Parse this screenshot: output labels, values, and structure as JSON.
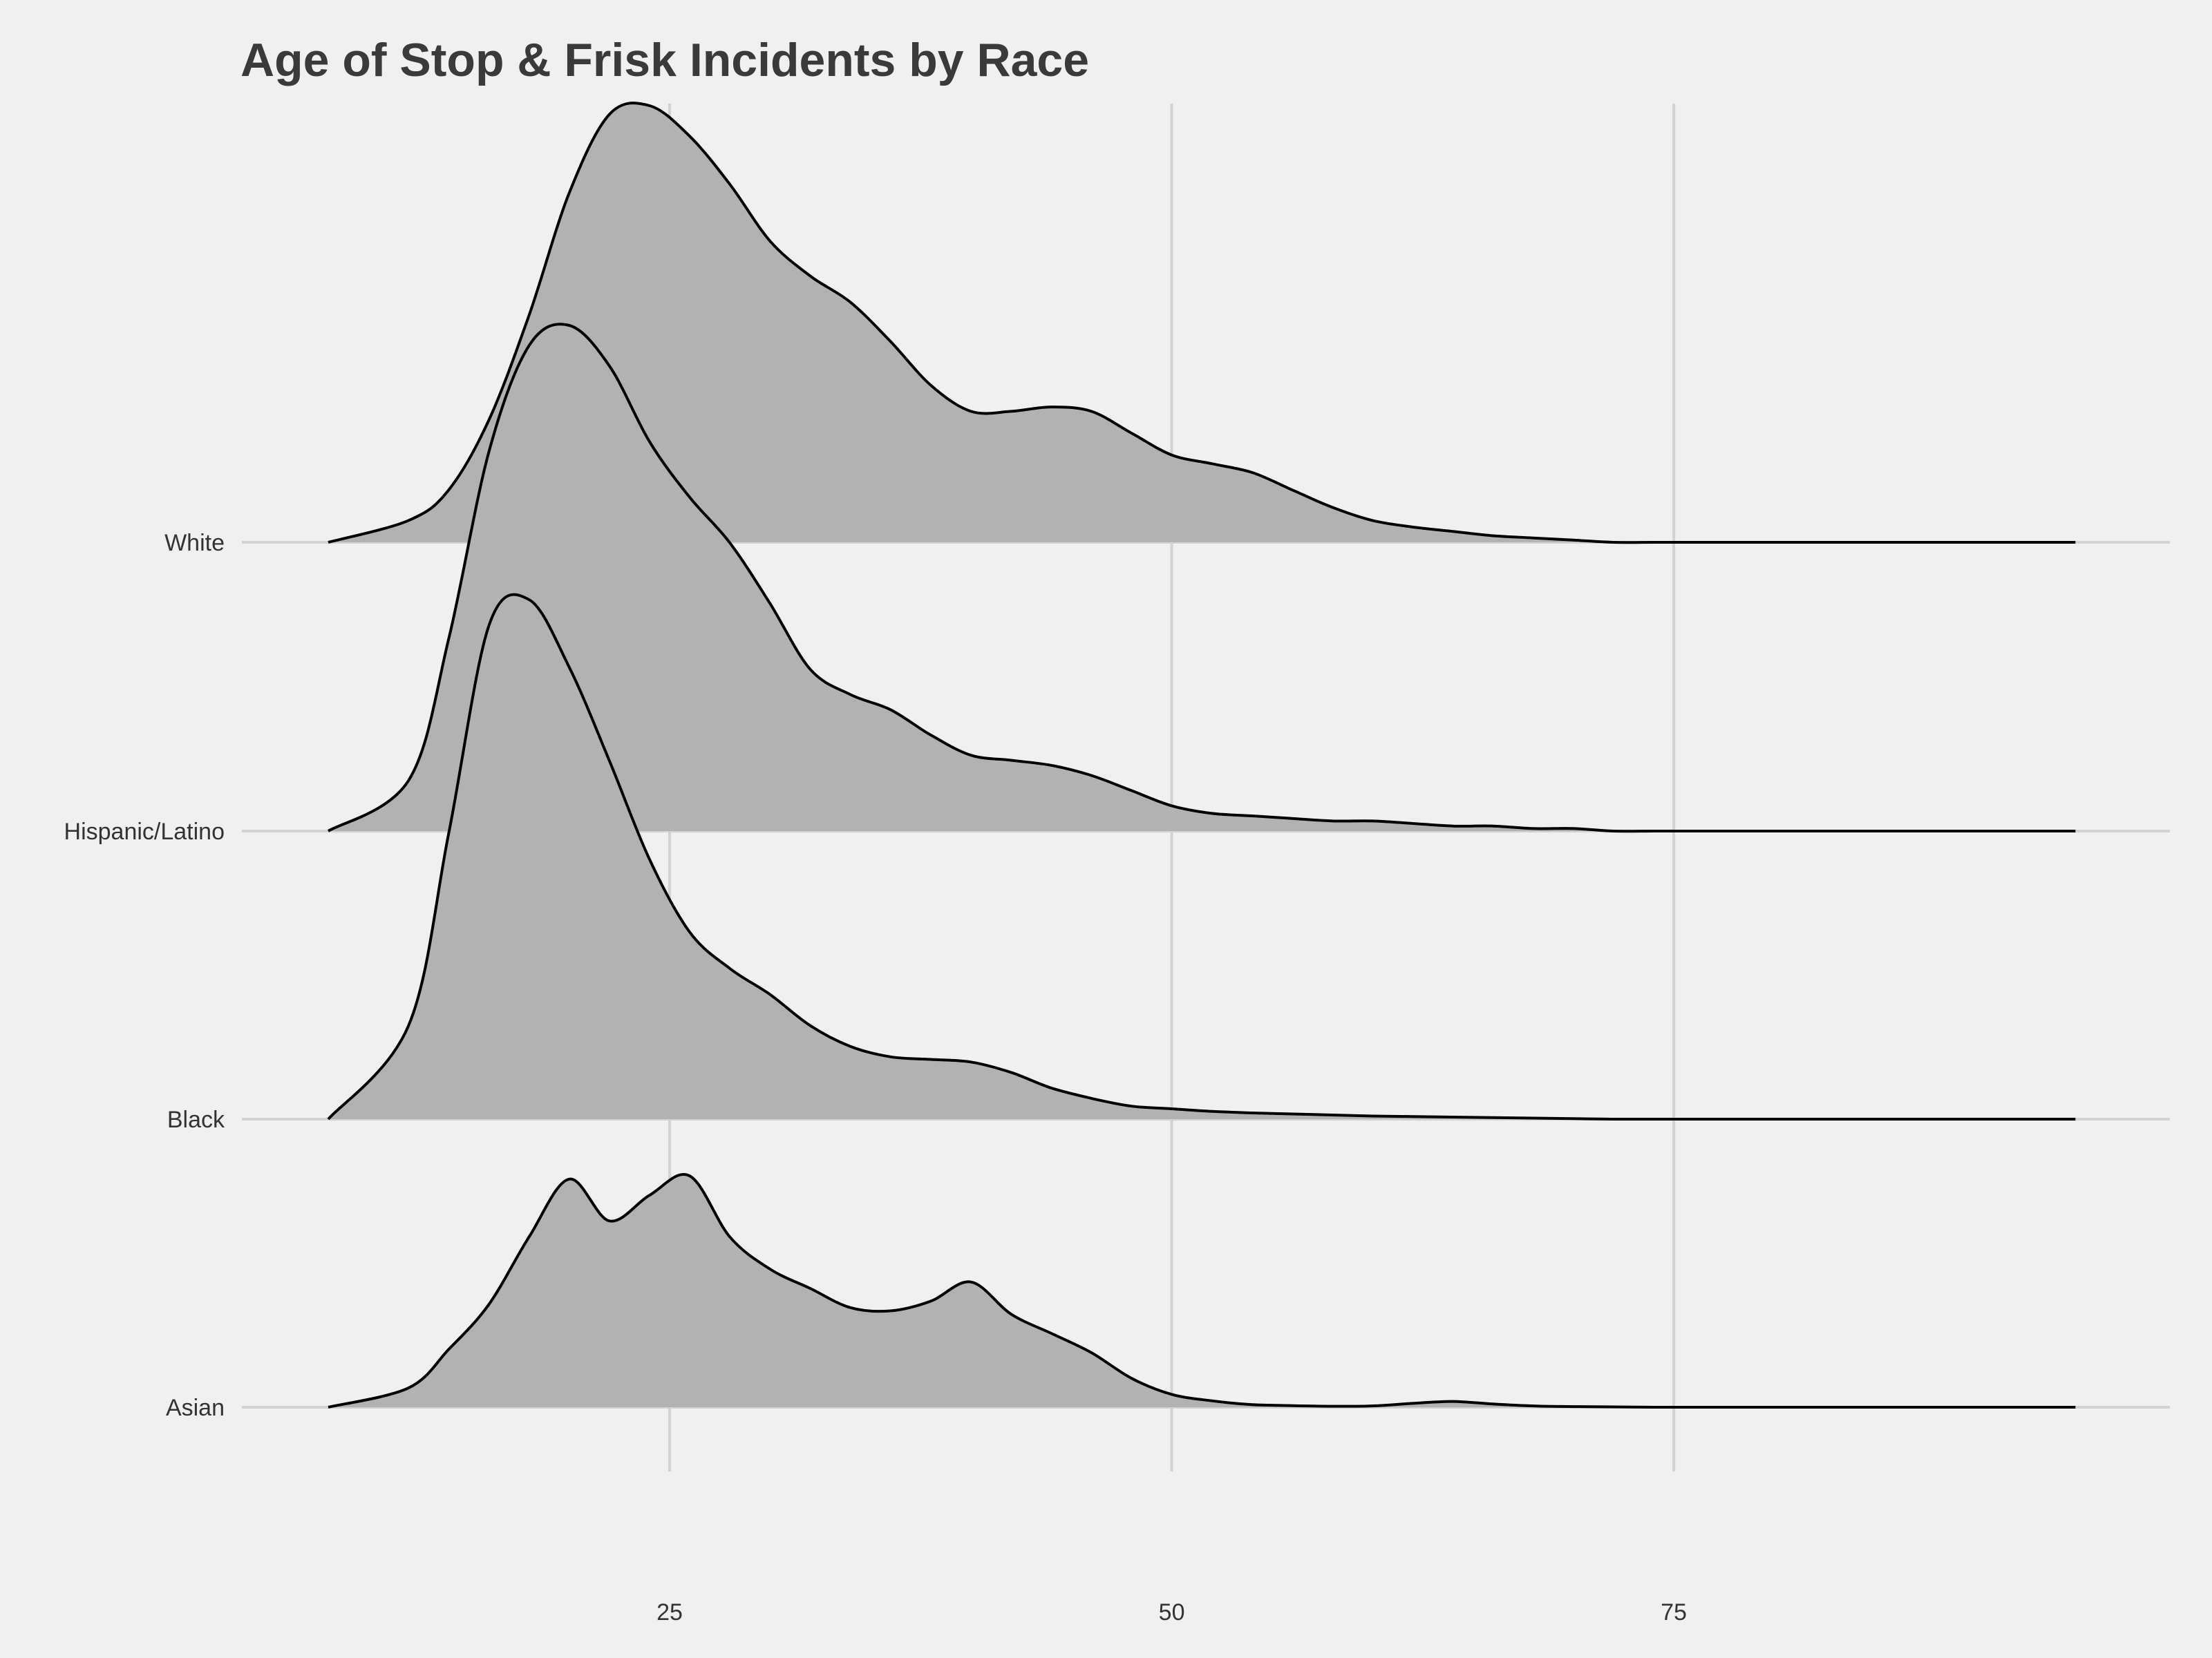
{
  "chart_data": {
    "type": "area",
    "subtype": "ridgeline",
    "title": "Age of Stop & Frisk Incidents by Race",
    "xlabel": "",
    "ylabel": "",
    "xlim": [
      3.7,
      99.7
    ],
    "x_ticks": [
      25,
      50,
      75
    ],
    "grid": true,
    "fill_color": "#b2b2b2",
    "line_color": "#000000",
    "background": "#f0f0f0",
    "categories": [
      "White",
      "Hispanic/Latino",
      "Black",
      "Asian"
    ],
    "x": [
      8,
      12,
      14,
      16,
      18,
      20,
      22,
      24,
      26,
      28,
      30,
      32,
      34,
      36,
      38,
      40,
      42,
      44,
      46,
      48,
      50,
      52,
      54,
      56,
      58,
      60,
      62,
      64,
      66,
      68,
      70,
      72,
      74,
      76,
      78,
      80,
      85,
      95
    ],
    "series": [
      {
        "name": "White",
        "values": [
          0,
          0.05,
          0.12,
          0.28,
          0.52,
          0.8,
          0.98,
          1,
          0.93,
          0.82,
          0.69,
          0.61,
          0.55,
          0.46,
          0.36,
          0.3,
          0.3,
          0.31,
          0.3,
          0.25,
          0.2,
          0.18,
          0.16,
          0.12,
          0.08,
          0.05,
          0.035,
          0.025,
          0.015,
          0.01,
          0.005,
          0,
          0,
          0,
          0,
          0,
          0,
          0
        ]
      },
      {
        "name": "Hispanic/Latino",
        "values": [
          0,
          0.1,
          0.38,
          0.75,
          0.96,
          1,
          0.92,
          0.77,
          0.66,
          0.57,
          0.45,
          0.32,
          0.27,
          0.24,
          0.19,
          0.15,
          0.14,
          0.13,
          0.11,
          0.08,
          0.05,
          0.035,
          0.03,
          0.025,
          0.02,
          0.02,
          0.015,
          0.01,
          0.01,
          0.005,
          0.005,
          0,
          0,
          0,
          0,
          0,
          0,
          0
        ]
      },
      {
        "name": "Black",
        "values": [
          0,
          0.18,
          0.55,
          0.95,
          1,
          0.87,
          0.69,
          0.5,
          0.36,
          0.29,
          0.24,
          0.18,
          0.14,
          0.12,
          0.115,
          0.11,
          0.09,
          0.06,
          0.04,
          0.025,
          0.02,
          0.015,
          0.012,
          0.01,
          0.008,
          0.006,
          0.005,
          0.004,
          0.003,
          0.002,
          0.001,
          0,
          0,
          0,
          0,
          0,
          0,
          0
        ]
      },
      {
        "name": "Asian",
        "values": [
          0,
          0.06,
          0.18,
          0.32,
          0.53,
          0.71,
          0.58,
          0.66,
          0.72,
          0.53,
          0.43,
          0.37,
          0.31,
          0.3,
          0.33,
          0.39,
          0.29,
          0.23,
          0.17,
          0.09,
          0.04,
          0.02,
          0.008,
          0.005,
          0.003,
          0.004,
          0.012,
          0.018,
          0.01,
          0.004,
          0.002,
          0.001,
          0,
          0,
          0,
          0,
          0,
          0
        ]
      }
    ]
  }
}
